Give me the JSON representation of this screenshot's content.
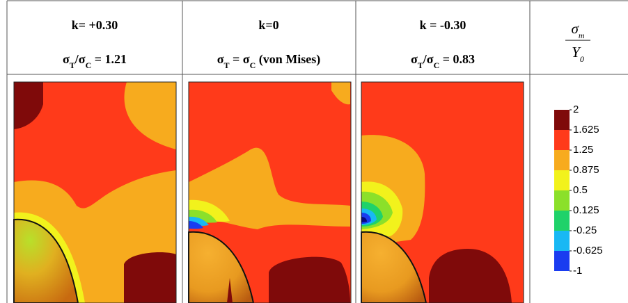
{
  "columns": [
    {
      "k": "k= +0.30",
      "ratio_parts": [
        "σ",
        "T",
        "/σ",
        "C",
        " = 1.21"
      ]
    },
    {
      "k": "k=0",
      "ratio_parts": [
        "σ",
        "T",
        " = σ",
        "C",
        " (von Mises)"
      ]
    },
    {
      "k": "k = -0.30",
      "ratio_parts": [
        "σ",
        "T",
        "/σ",
        "C",
        " = 0.83"
      ]
    }
  ],
  "legend": {
    "numerator": [
      "σ",
      "m"
    ],
    "denominator": [
      "Y",
      "0"
    ],
    "levels": [
      2,
      1.625,
      1.25,
      0.875,
      0.5,
      0.125,
      -0.25,
      -0.625,
      -1
    ],
    "colors": [
      "#7f0a0a",
      "#ff3a1a",
      "#f7ab1e",
      "#f2f21c",
      "#8be02a",
      "#1fd26a",
      "#18b8f4",
      "#1a3cf0",
      "#0a0a80"
    ]
  }
}
